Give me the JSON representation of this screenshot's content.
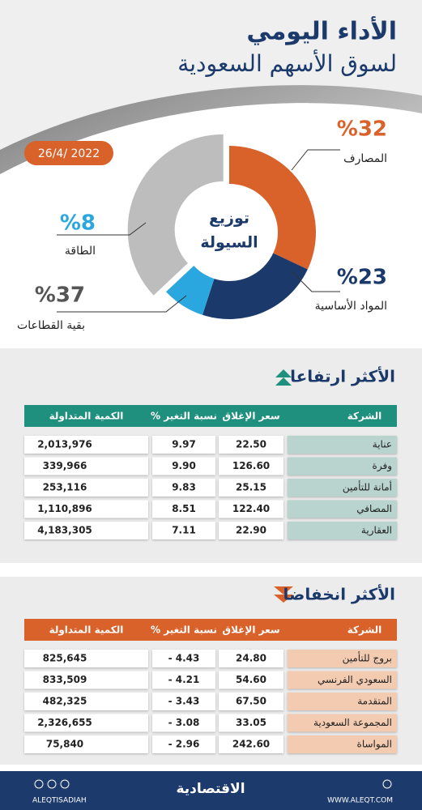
{
  "title_lines": [
    "الأداء اليومي",
    "لسوق الأسهم السعودية"
  ],
  "date": "26/4/ 2022",
  "chart_data": {
    "type": "donut",
    "center_label": [
      "توزيع",
      "السيولة"
    ],
    "categories": [
      "المصارف",
      "المواد الأساسية",
      "الطاقة",
      "بقية القطاعات"
    ],
    "values": [
      32,
      23,
      8,
      37
    ],
    "value_labels": [
      "%32",
      "%23",
      "%8",
      "%37"
    ],
    "colors": [
      "#d9622b",
      "#1b3a6b",
      "#2aa7df",
      "#bdbdbd"
    ]
  },
  "rising": {
    "title": "الأكثر ارتفاعا",
    "headers": [
      "الشركة",
      "سعر الإغلاق",
      "نسبة التغير %",
      "الكمية المتداولة"
    ],
    "rows": [
      [
        "عناية",
        "22.50",
        "9.97",
        "2,013,976"
      ],
      [
        "وفرة",
        "126.60",
        "9.90",
        "339,966"
      ],
      [
        "أمانة للتأمين",
        "25.15",
        "9.83",
        "253,116"
      ],
      [
        "المصافي",
        "122.40",
        "8.51",
        "1,110,896"
      ],
      [
        "العقارية",
        "22.90",
        "7.11",
        "4,183,305"
      ]
    ]
  },
  "falling": {
    "title": "الأكثر انخفاضا",
    "headers": [
      "الشركة",
      "سعر الإغلاق",
      "نسبة التغير %",
      "الكمية المتداولة"
    ],
    "rows": [
      [
        "بروج للتأمين",
        "24.80",
        "- 4.43",
        "825,645"
      ],
      [
        "السعودي الفرنسي",
        "54.60",
        "- 4.21",
        "833,509"
      ],
      [
        "المتقدمة",
        "67.50",
        "- 3.43",
        "482,325"
      ],
      [
        "المجموعة السعودية",
        "33.05",
        "- 3.08",
        "2,326,655"
      ],
      [
        "المواساة",
        "242.60",
        "- 2.96",
        "75,840"
      ]
    ]
  },
  "footer": {
    "brand": "الاقتصادية",
    "handle": "ALEQTISADIAH",
    "site": "WWW.ALEQT.COM"
  }
}
